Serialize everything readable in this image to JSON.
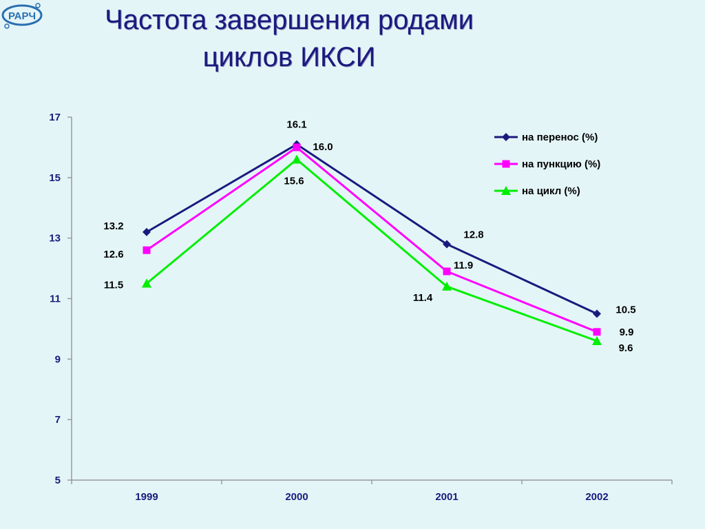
{
  "logo": {
    "text": "РАРЧ"
  },
  "title_line1": "Частота завершения родами",
  "title_line2": "циклов ИКСИ",
  "chart_data": {
    "type": "line",
    "categories": [
      "1999",
      "2000",
      "2001",
      "2002"
    ],
    "ylim": [
      5,
      17
    ],
    "yticks": [
      5,
      7,
      9,
      11,
      13,
      15,
      17
    ],
    "legend_position": "top-right",
    "series": [
      {
        "name": "на перенос (%)",
        "values": [
          13.2,
          16.1,
          12.8,
          10.5
        ],
        "labels": [
          "13.2",
          "16.1",
          "12.8",
          "10.5"
        ],
        "color": "#1a1a7e",
        "marker": "diamond"
      },
      {
        "name": "на пункцию (%)",
        "values": [
          12.6,
          16.0,
          11.9,
          9.9
        ],
        "labels": [
          "12.6",
          "16.0",
          "11.9",
          "9.9"
        ],
        "color": "#ff00ff",
        "marker": "square"
      },
      {
        "name": "на цикл (%)",
        "values": [
          11.5,
          15.6,
          11.4,
          9.6
        ],
        "labels": [
          "11.5",
          "15.6",
          "11.4",
          "9.6"
        ],
        "color": "#00ee00",
        "marker": "triangle"
      }
    ]
  }
}
